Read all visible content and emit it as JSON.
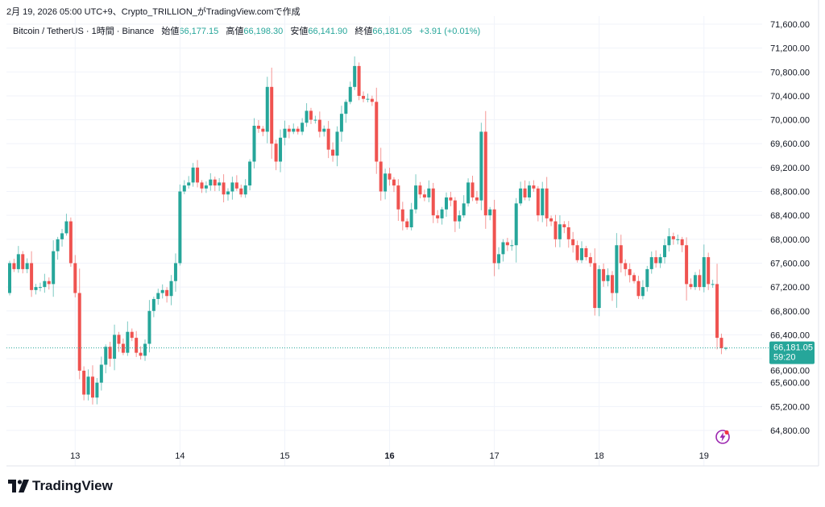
{
  "credit": "2月 19, 2026 05:00 UTC+9、Crypto_TRILLION_がTradingView.comで作成",
  "legend": {
    "symbol": "Bitcoin / TetherUS · 1時間 · Binance",
    "open_label": "始値",
    "open": "66,177.15",
    "high_label": "高値",
    "high": "66,198.30",
    "low_label": "安値",
    "low": "66,141.90",
    "close_label": "終値",
    "close": "66,181.05",
    "change": "+3.91 (+0.01%)"
  },
  "brand": "TradingView",
  "price_tag": {
    "price": "66,181.05",
    "countdown": "59:20"
  },
  "colors": {
    "up": "#26a69a",
    "down": "#ef5350",
    "grid": "#f0f3fa",
    "text": "#131722",
    "alert": "#9c27b0"
  },
  "icons": [
    "tradingview-logo-icon",
    "lightning-alert-icon"
  ],
  "chart_data": {
    "type": "candlestick",
    "interval": "1h",
    "ylim": [
      64800,
      71600
    ],
    "y_ticks": [
      "71,600.00",
      "71,200.00",
      "70,800.00",
      "70,400.00",
      "70,000.00",
      "69,600.00",
      "69,200.00",
      "68,800.00",
      "68,400.00",
      "68,000.00",
      "67,600.00",
      "67,200.00",
      "66,800.00",
      "66,400.00",
      "66,000.00",
      "65,600.00",
      "65,200.00",
      "64,800.00"
    ],
    "x_ticks": [
      {
        "label": "13",
        "hour": 15
      },
      {
        "label": "14",
        "hour": 39
      },
      {
        "label": "15",
        "hour": 63
      },
      {
        "label": "16",
        "hour": 87,
        "bold": true
      },
      {
        "label": "17",
        "hour": 111
      },
      {
        "label": "18",
        "hour": 135
      },
      {
        "label": "19",
        "hour": 159
      }
    ],
    "grid": true,
    "first_open": 67100,
    "closes": [
      67600,
      67500,
      67750,
      67500,
      67600,
      67150,
      67200,
      67200,
      67300,
      67250,
      67800,
      68000,
      68100,
      68300,
      67600,
      67100,
      65800,
      65400,
      65700,
      65350,
      65600,
      65900,
      66200,
      66000,
      66400,
      66250,
      66100,
      66450,
      66350,
      66100,
      66050,
      66250,
      66800,
      67000,
      67100,
      67150,
      67050,
      67300,
      67600,
      68800,
      68900,
      68950,
      69200,
      68950,
      68850,
      68900,
      69000,
      68900,
      68950,
      68750,
      68800,
      68950,
      68850,
      68750,
      68900,
      69300,
      69900,
      69850,
      69800,
      70550,
      69600,
      69300,
      69700,
      69850,
      69800,
      69850,
      69800,
      69950,
      70150,
      70000,
      70000,
      69800,
      69850,
      69500,
      69400,
      69800,
      70100,
      70300,
      70550,
      70900,
      70400,
      70350,
      70350,
      70300,
      69300,
      68800,
      69100,
      69000,
      68900,
      68500,
      68300,
      68200,
      68500,
      68900,
      68750,
      68700,
      68850,
      68400,
      68350,
      68500,
      68700,
      68650,
      68300,
      68400,
      68600,
      68950,
      68700,
      68650,
      69800,
      68400,
      68500,
      67600,
      67750,
      67950,
      67900,
      67900,
      68600,
      68850,
      68700,
      68900,
      68850,
      68400,
      68850,
      68350,
      68300,
      68000,
      68250,
      68200,
      68000,
      67900,
      67650,
      67850,
      67700,
      67600,
      66850,
      67500,
      67300,
      67400,
      67100,
      67900,
      67600,
      67500,
      67400,
      67300,
      67050,
      67200,
      67500,
      67700,
      67600,
      67700,
      67900,
      68050,
      68000,
      68000,
      67900,
      67250,
      67200,
      67400,
      67200,
      67700,
      67250,
      67250,
      66350,
      66177.15
    ],
    "last_candle": {
      "open": 66177.15,
      "high": 66198.3,
      "low": 66141.9,
      "close": 66181.05
    },
    "current_price": 66181.05
  }
}
